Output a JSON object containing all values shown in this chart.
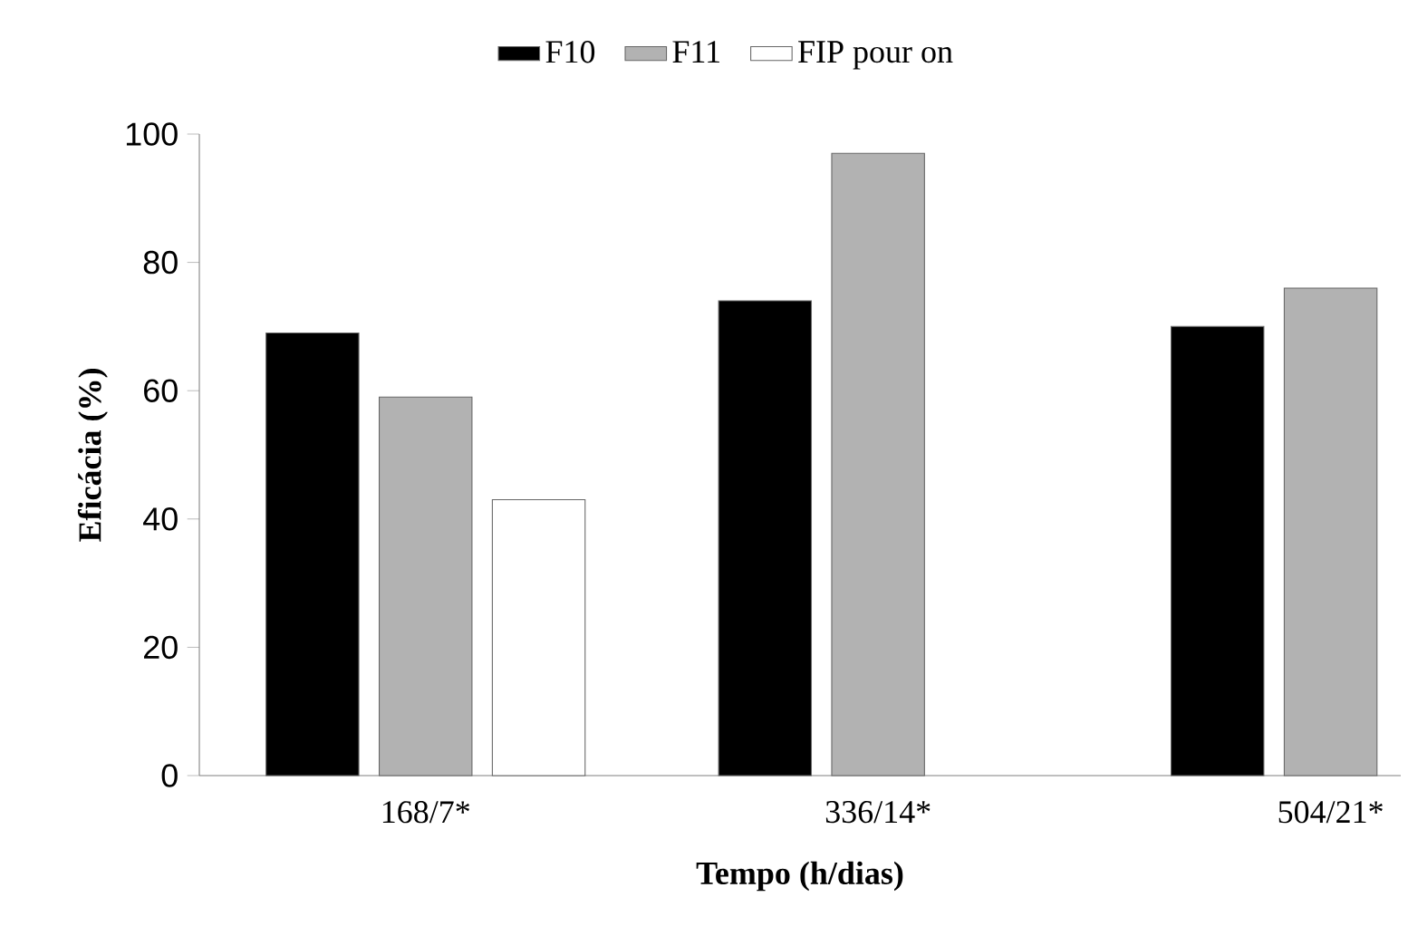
{
  "chart_data": {
    "type": "bar",
    "categories": [
      "168/7*",
      "336/14*",
      "504/21*"
    ],
    "series": [
      {
        "name": "F10",
        "color": "#000000",
        "values": [
          69,
          74,
          70
        ]
      },
      {
        "name": "F11",
        "color": "#b2b2b2",
        "values": [
          59,
          97,
          76
        ]
      },
      {
        "name": "FIP pour on",
        "color": "#ffffff",
        "values": [
          43,
          null,
          null
        ]
      }
    ],
    "xlabel": "Tempo (h/dias)",
    "ylabel": "Eficácia (%)",
    "ylim": [
      0,
      100
    ],
    "yticks": [
      0,
      20,
      40,
      60,
      80,
      100
    ],
    "legend": "top",
    "grid": false
  }
}
